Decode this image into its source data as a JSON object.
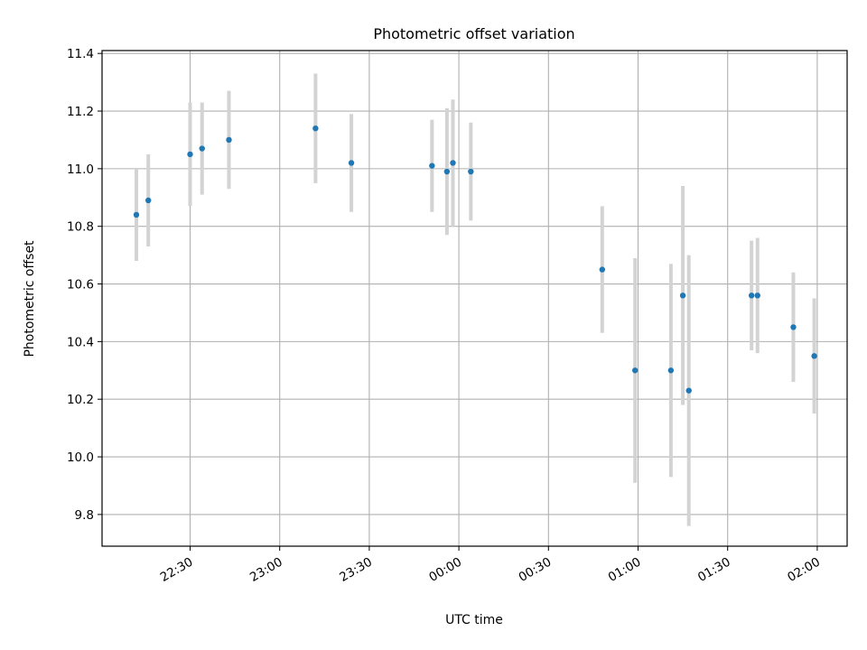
{
  "chart_data": {
    "type": "scatter",
    "title": "Photometric offset variation",
    "xlabel": "UTC time",
    "ylabel": "Photometric offset",
    "grid": true,
    "x_ticks": [
      "22:30",
      "23:00",
      "23:30",
      "00:00",
      "00:30",
      "01:00",
      "01:30",
      "02:00"
    ],
    "y_ticks": [
      "9.8",
      "10.0",
      "10.2",
      "10.4",
      "10.6",
      "10.8",
      "11.0",
      "11.2",
      "11.4"
    ],
    "series": [
      {
        "marker_color": "#1f77b4",
        "errorbar_color": "#d3d3d3",
        "points": [
          {
            "x": "22:12",
            "y": 10.84,
            "yerr": 0.16
          },
          {
            "x": "22:16",
            "y": 10.89,
            "yerr": 0.16
          },
          {
            "x": "22:30",
            "y": 11.05,
            "yerr": 0.18
          },
          {
            "x": "22:34",
            "y": 11.07,
            "yerr": 0.16
          },
          {
            "x": "22:43",
            "y": 11.1,
            "yerr": 0.17
          },
          {
            "x": "23:12",
            "y": 11.14,
            "yerr": 0.19
          },
          {
            "x": "23:24",
            "y": 11.02,
            "yerr": 0.17
          },
          {
            "x": "23:51",
            "y": 11.01,
            "yerr": 0.16
          },
          {
            "x": "23:56",
            "y": 10.99,
            "yerr": 0.22
          },
          {
            "x": "23:58",
            "y": 11.02,
            "yerr": 0.22
          },
          {
            "x": "00:04",
            "y": 10.99,
            "yerr": 0.17
          },
          {
            "x": "00:48",
            "y": 10.65,
            "yerr": 0.22
          },
          {
            "x": "00:59",
            "y": 10.3,
            "yerr": 0.39
          },
          {
            "x": "01:11",
            "y": 10.3,
            "yerr": 0.37
          },
          {
            "x": "01:15",
            "y": 10.56,
            "yerr": 0.38
          },
          {
            "x": "01:17",
            "y": 10.23,
            "yerr": 0.47
          },
          {
            "x": "01:38",
            "y": 10.56,
            "yerr": 0.19
          },
          {
            "x": "01:40",
            "y": 10.56,
            "yerr": 0.2
          },
          {
            "x": "01:52",
            "y": 10.45,
            "yerr": 0.19
          },
          {
            "x": "01:59",
            "y": 10.35,
            "yerr": 0.2
          }
        ]
      }
    ]
  }
}
